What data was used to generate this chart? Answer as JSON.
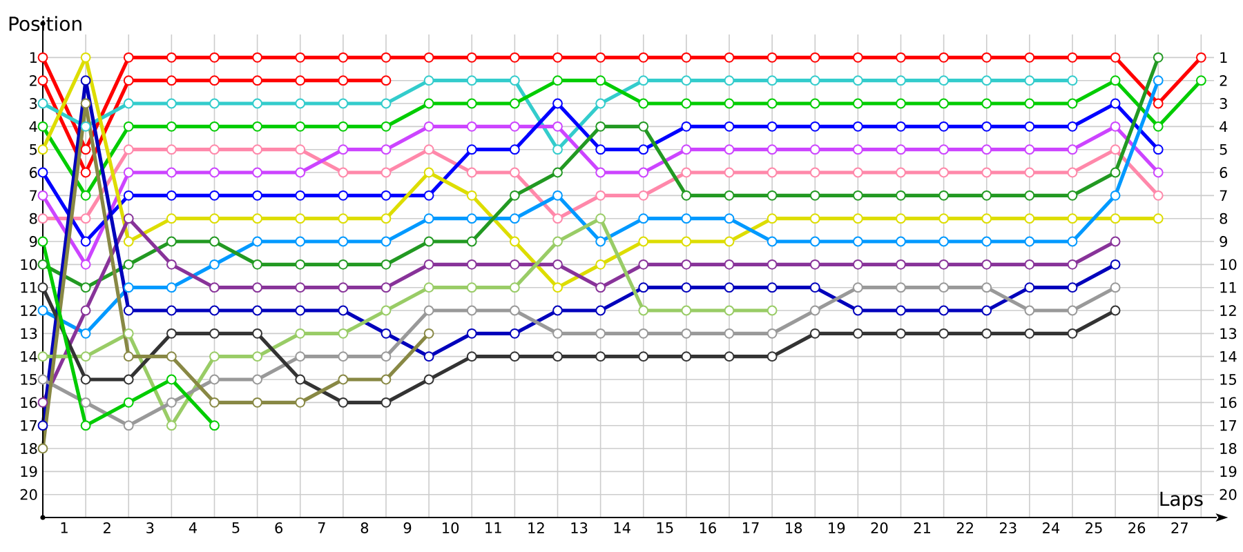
{
  "chart_data": {
    "type": "line",
    "ylabel": "Position",
    "xlabel": "Laps",
    "x": [
      0,
      1,
      2,
      3,
      4,
      5,
      6,
      7,
      8,
      9,
      10,
      11,
      12,
      13,
      14,
      15,
      16,
      17,
      18,
      19,
      20,
      21,
      22,
      23,
      24,
      25,
      26,
      27
    ],
    "xlim": [
      0,
      27.3
    ],
    "ylim": [
      21,
      0
    ],
    "xticks": [
      {
        "value": 1,
        "label": null
      },
      {
        "value": 2,
        "label": null
      },
      {
        "value": 3,
        "label": null
      },
      {
        "value": 4,
        "label": null
      },
      {
        "value": 5,
        "label": null
      },
      {
        "value": 6,
        "label": null
      },
      {
        "value": 7,
        "label": null
      },
      {
        "value": 8,
        "label": null
      },
      {
        "value": 9,
        "label": null
      },
      {
        "value": 10,
        "label": null
      },
      {
        "value": 11,
        "label": null
      },
      {
        "value": 12,
        "label": null
      },
      {
        "value": 13,
        "label": null
      },
      {
        "value": 14,
        "label": null
      },
      {
        "value": 15,
        "label": null
      },
      {
        "value": 16,
        "label": null
      },
      {
        "value": 17,
        "label": null
      },
      {
        "value": 18,
        "label": null
      },
      {
        "value": 19,
        "label": null
      },
      {
        "value": 20,
        "label": null
      },
      {
        "value": 21,
        "label": null
      },
      {
        "value": 22,
        "label": null
      },
      {
        "value": 23,
        "label": null
      },
      {
        "value": 24,
        "label": null
      },
      {
        "value": 25,
        "label": null
      },
      {
        "value": 26,
        "label": null
      },
      {
        "value": 27,
        "label": null
      },
      {
        "value": 0.5,
        "label": "1"
      },
      {
        "value": 1.5,
        "label": "2"
      },
      {
        "value": 2.5,
        "label": "3"
      },
      {
        "value": 3.5,
        "label": "4"
      },
      {
        "value": 4.5,
        "label": "5"
      },
      {
        "value": 5.5,
        "label": "6"
      },
      {
        "value": 6.5,
        "label": "7"
      },
      {
        "value": 7.5,
        "label": "8"
      },
      {
        "value": 8.5,
        "label": "9"
      },
      {
        "value": 9.5,
        "label": "10"
      },
      {
        "value": 10.5,
        "label": "11"
      },
      {
        "value": 11.5,
        "label": "12"
      },
      {
        "value": 12.5,
        "label": "13"
      },
      {
        "value": 13.5,
        "label": "14"
      },
      {
        "value": 14.5,
        "label": "15"
      },
      {
        "value": 15.5,
        "label": "16"
      },
      {
        "value": 16.5,
        "label": "17"
      },
      {
        "value": 17.5,
        "label": "18"
      },
      {
        "value": 18.5,
        "label": "19"
      },
      {
        "value": 19.5,
        "label": "20"
      },
      {
        "value": 20.5,
        "label": "21"
      },
      {
        "value": 21.5,
        "label": "22"
      },
      {
        "value": 22.5,
        "label": "23"
      },
      {
        "value": 23.5,
        "label": "24"
      },
      {
        "value": 24.5,
        "label": "25"
      },
      {
        "value": 25.5,
        "label": "26"
      },
      {
        "value": 26.5,
        "label": "27"
      }
    ],
    "yticks": [
      1,
      2,
      3,
      4,
      5,
      6,
      7,
      8,
      9,
      10,
      11,
      12,
      13,
      14,
      15,
      16,
      17,
      18,
      19,
      20
    ],
    "y2lim": [
      21,
      0
    ],
    "y2ticks": [
      1,
      2,
      3,
      4,
      5,
      6,
      7,
      8,
      9,
      10,
      11,
      12,
      13,
      14,
      15,
      16,
      17,
      18,
      19,
      20
    ],
    "grid": true,
    "marker": "circle",
    "line_style": "solid",
    "series": [
      {
        "color": "#ff0000",
        "values": [
          1,
          5,
          1,
          1,
          1,
          1,
          1,
          1,
          1,
          1,
          1,
          1,
          1,
          1,
          1,
          1,
          1,
          1,
          1,
          1,
          1,
          1,
          1,
          1,
          1,
          1,
          3,
          1
        ]
      },
      {
        "color": "#ff0000",
        "values": [
          2,
          6,
          2,
          2,
          2,
          2,
          2,
          2,
          2,
          null,
          null,
          null,
          null,
          null,
          null,
          null,
          null,
          null,
          null,
          null,
          null,
          null,
          null,
          null,
          null,
          null,
          null,
          null
        ]
      },
      {
        "color": "#33cccc",
        "values": [
          3,
          4,
          3,
          3,
          3,
          3,
          3,
          3,
          3,
          2,
          2,
          2,
          5,
          3,
          2,
          2,
          2,
          2,
          2,
          2,
          2,
          2,
          2,
          2,
          2,
          null,
          null,
          null
        ]
      },
      {
        "color": "#00cc00",
        "values": [
          4,
          7,
          4,
          4,
          4,
          4,
          4,
          4,
          4,
          3,
          3,
          3,
          2,
          2,
          3,
          3,
          3,
          3,
          3,
          3,
          3,
          3,
          3,
          3,
          3,
          2,
          4,
          2
        ]
      },
      {
        "color": "#ff88aa",
        "values": [
          8,
          8,
          5,
          5,
          5,
          5,
          5,
          6,
          6,
          5,
          6,
          6,
          8,
          7,
          7,
          6,
          6,
          6,
          6,
          6,
          6,
          6,
          6,
          6,
          6,
          5,
          7,
          null
        ]
      },
      {
        "color": "#cc44ff",
        "values": [
          7,
          10,
          6,
          6,
          6,
          6,
          6,
          5,
          5,
          4,
          4,
          4,
          4,
          6,
          6,
          5,
          5,
          5,
          5,
          5,
          5,
          5,
          5,
          5,
          5,
          4,
          6,
          null
        ]
      },
      {
        "color": "#0000ff",
        "values": [
          6,
          9,
          7,
          7,
          7,
          7,
          7,
          7,
          7,
          7,
          5,
          5,
          3,
          5,
          5,
          4,
          4,
          4,
          4,
          4,
          4,
          4,
          4,
          4,
          4,
          3,
          5,
          null
        ]
      },
      {
        "color": "#dddd00",
        "values": [
          5,
          1,
          9,
          8,
          8,
          8,
          8,
          8,
          8,
          6,
          7,
          9,
          11,
          10,
          9,
          9,
          9,
          8,
          8,
          8,
          8,
          8,
          8,
          8,
          8,
          8,
          8,
          null
        ]
      },
      {
        "color": "#0099ff",
        "values": [
          12,
          13,
          11,
          11,
          10,
          9,
          9,
          9,
          9,
          8,
          8,
          8,
          7,
          9,
          8,
          8,
          8,
          9,
          9,
          9,
          9,
          9,
          9,
          9,
          9,
          7,
          2,
          null
        ]
      },
      {
        "color": "#229922",
        "values": [
          10,
          11,
          10,
          9,
          9,
          10,
          10,
          10,
          10,
          9,
          9,
          7,
          6,
          4,
          4,
          7,
          7,
          7,
          7,
          7,
          7,
          7,
          7,
          7,
          7,
          6,
          1,
          null
        ]
      },
      {
        "color": "#883399",
        "values": [
          16,
          12,
          8,
          10,
          11,
          11,
          11,
          11,
          11,
          10,
          10,
          10,
          10,
          11,
          10,
          10,
          10,
          10,
          10,
          10,
          10,
          10,
          10,
          10,
          10,
          9,
          null,
          null
        ]
      },
      {
        "color": "#0000bb",
        "values": [
          17,
          2,
          12,
          12,
          12,
          12,
          12,
          12,
          13,
          14,
          13,
          13,
          12,
          12,
          11,
          11,
          11,
          11,
          11,
          12,
          12,
          12,
          12,
          11,
          11,
          10,
          null,
          null
        ]
      },
      {
        "color": "#99cc66",
        "values": [
          14,
          14,
          13,
          17,
          14,
          14,
          13,
          13,
          12,
          11,
          11,
          11,
          9,
          8,
          12,
          12,
          12,
          12,
          null,
          null,
          null,
          null,
          null,
          null,
          null,
          null,
          null,
          null
        ]
      },
      {
        "color": "#999999",
        "values": [
          15,
          16,
          17,
          16,
          15,
          15,
          14,
          14,
          14,
          12,
          12,
          12,
          13,
          13,
          13,
          13,
          13,
          13,
          12,
          11,
          11,
          11,
          11,
          12,
          12,
          11,
          null,
          null
        ]
      },
      {
        "color": "#333333",
        "values": [
          11,
          15,
          15,
          13,
          13,
          13,
          15,
          16,
          16,
          15,
          14,
          14,
          14,
          14,
          14,
          14,
          14,
          14,
          13,
          13,
          13,
          13,
          13,
          13,
          13,
          12,
          null,
          null
        ]
      },
      {
        "color": "#888844",
        "values": [
          18,
          3,
          14,
          14,
          16,
          16,
          16,
          15,
          15,
          13,
          null,
          null,
          null,
          null,
          null,
          null,
          null,
          null,
          null,
          null,
          null,
          null,
          null,
          null,
          null,
          null,
          null,
          null
        ]
      },
      {
        "color": "#00cc00",
        "values": [
          9,
          17,
          16,
          15,
          17,
          null,
          null,
          null,
          null,
          null,
          null,
          null,
          null,
          null,
          null,
          null,
          null,
          null,
          null,
          null,
          null,
          null,
          null,
          null,
          null,
          null,
          null,
          null
        ]
      }
    ]
  }
}
